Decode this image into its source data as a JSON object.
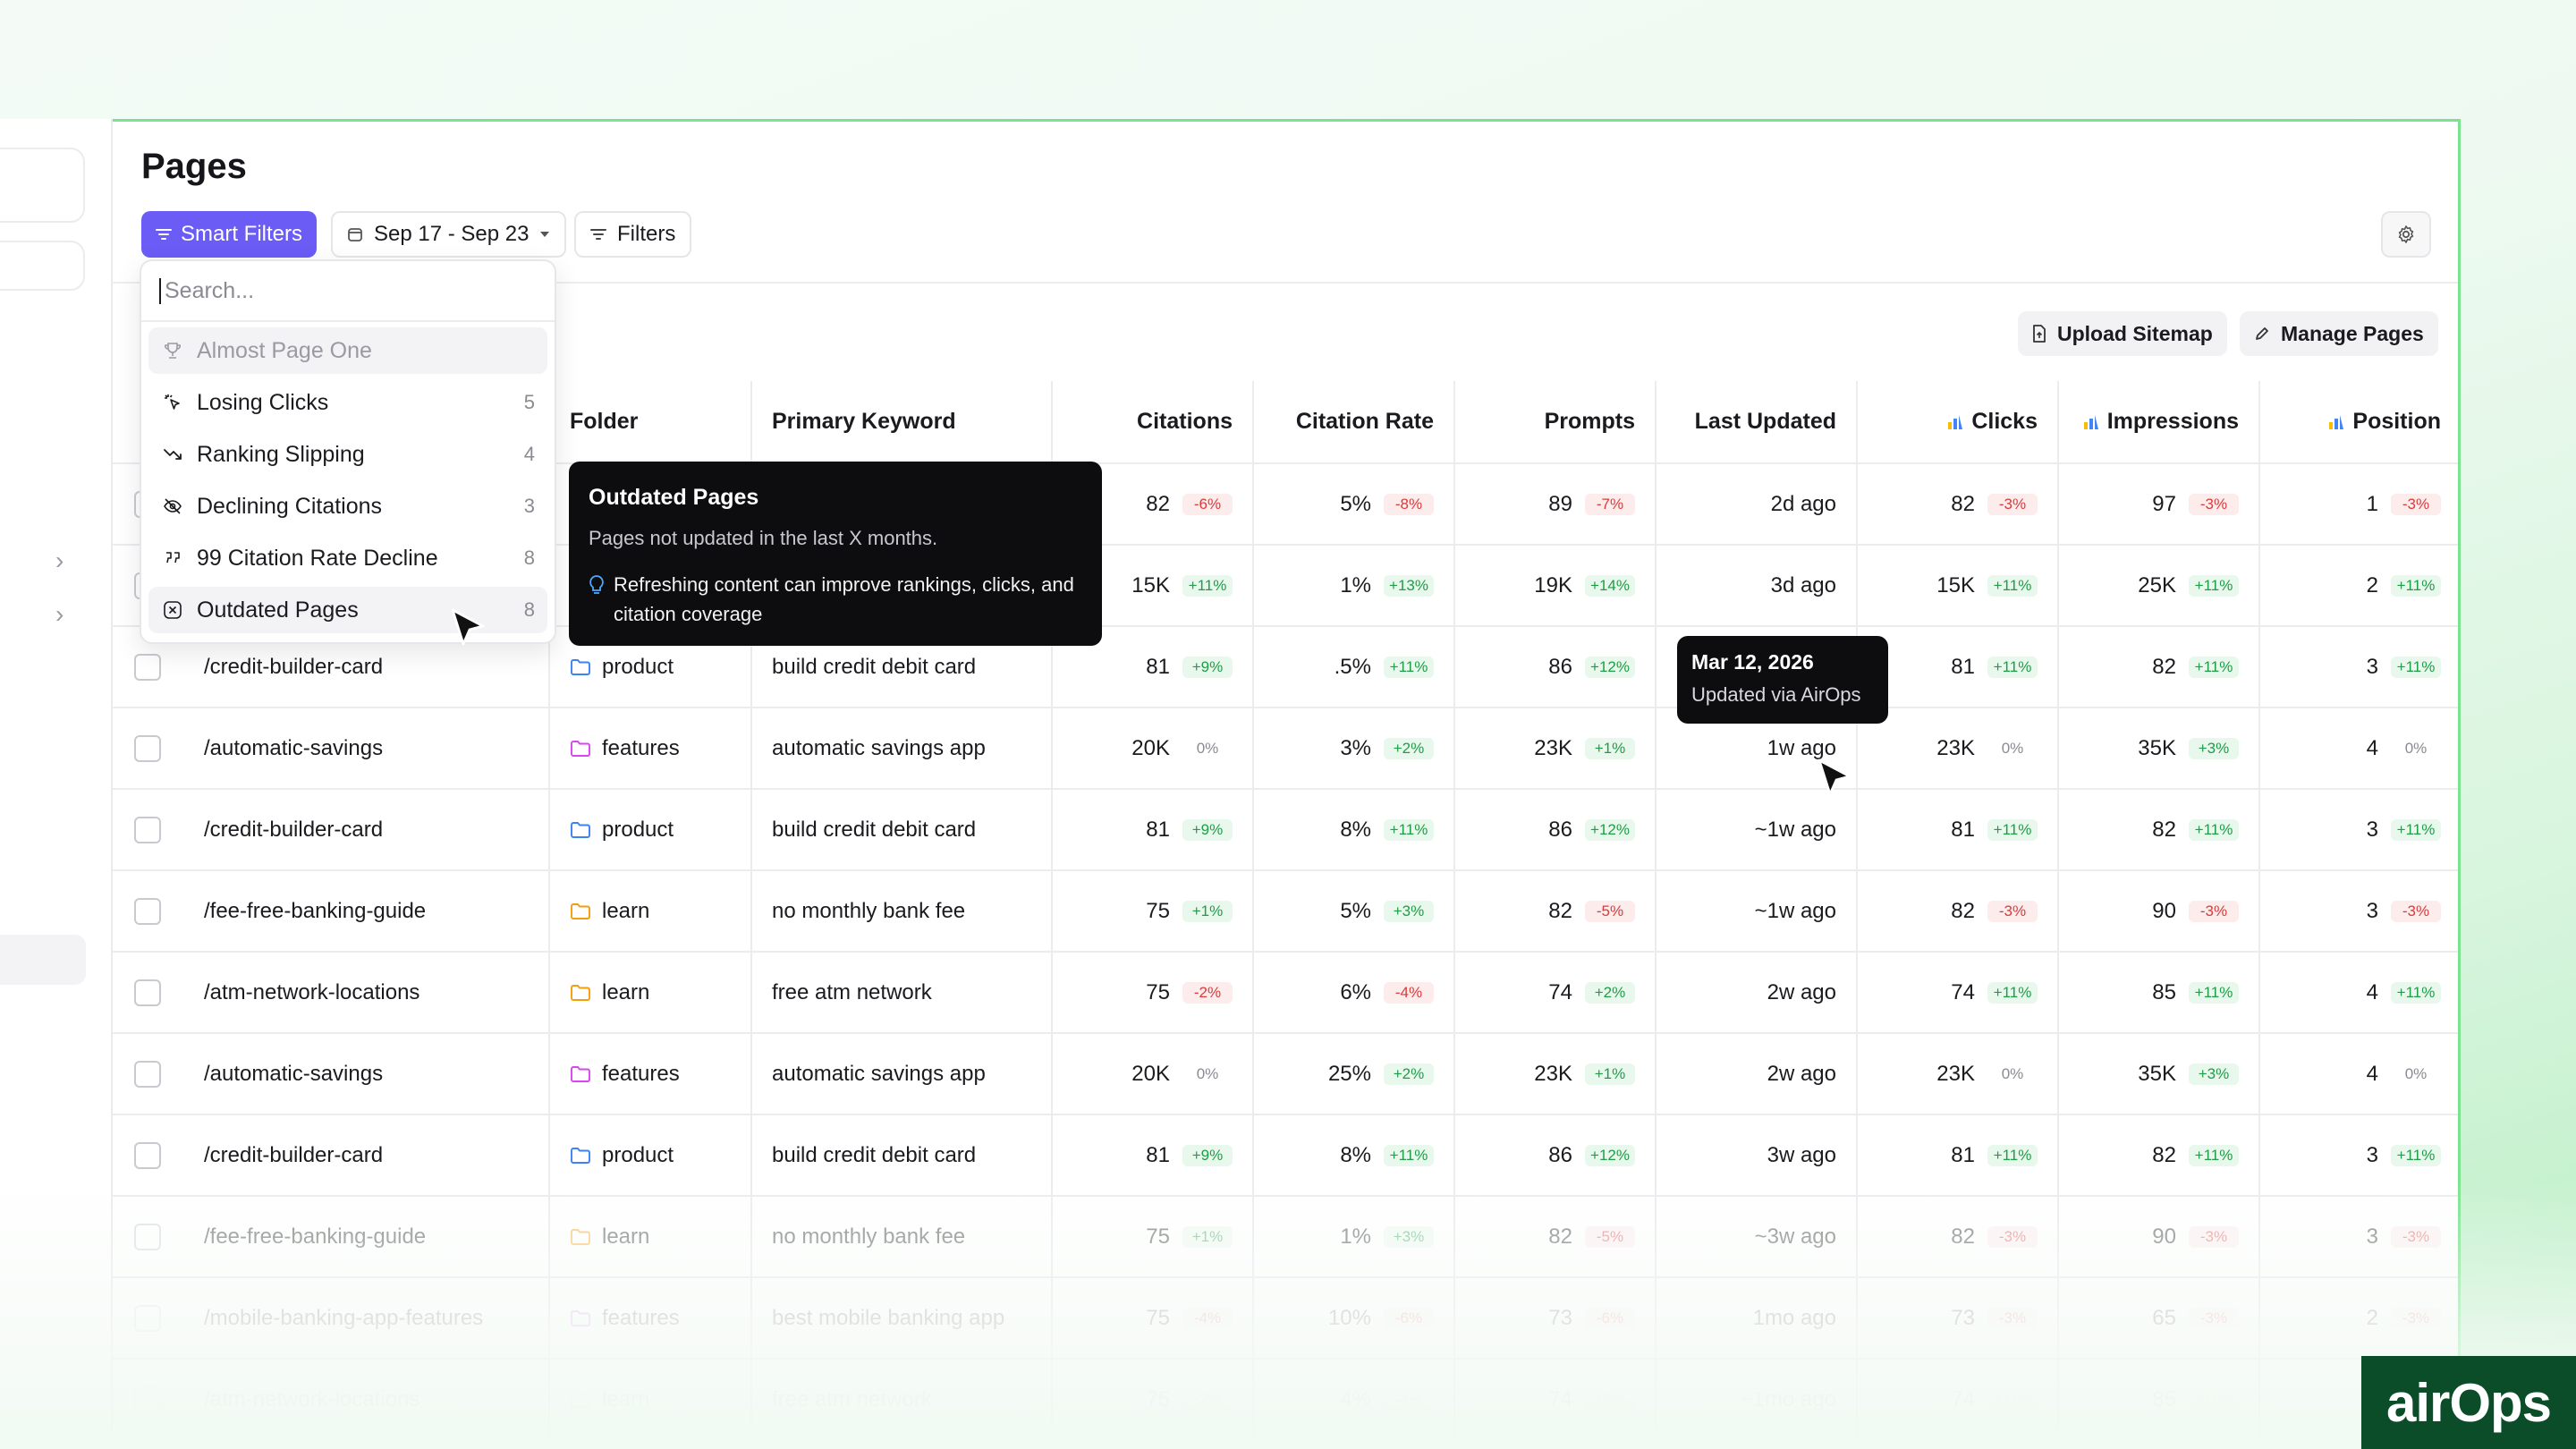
{
  "page": {
    "title": "Pages"
  },
  "toolbar": {
    "smart_filters_label": "Smart Filters",
    "date_range_label": "Sep 17 - Sep 23",
    "filters_label": "Filters",
    "upload_sitemap_label": "Upload Sitemap",
    "manage_pages_label": "Manage Pages"
  },
  "dropdown": {
    "search_placeholder": "Search...",
    "items": [
      {
        "label": "Almost Page One",
        "count": "",
        "icon": "trophy-icon",
        "state": "disabled"
      },
      {
        "label": "Losing Clicks",
        "count": "5",
        "icon": "cursor-click-icon",
        "state": ""
      },
      {
        "label": "Ranking Slipping",
        "count": "4",
        "icon": "trend-down-icon",
        "state": ""
      },
      {
        "label": "Declining Citations",
        "count": "3",
        "icon": "eye-off-icon",
        "state": ""
      },
      {
        "label": "99 Citation Rate Decline",
        "count": "8",
        "icon": "quote-icon",
        "state": ""
      },
      {
        "label": "Outdated Pages",
        "count": "8",
        "icon": "clock-x-icon",
        "state": "active"
      }
    ]
  },
  "tooltip_filter": {
    "title": "Outdated Pages",
    "description": "Pages not updated in the last X months.",
    "tip": "Refreshing content can improve rankings, clicks, and citation coverage"
  },
  "tooltip_date": {
    "date": "Mar 12, 2026",
    "subtitle": "Updated via AirOps"
  },
  "table": {
    "headers": {
      "folder": "Folder",
      "keyword": "Primary Keyword",
      "citations": "Citations",
      "citation_rate": "Citation Rate",
      "prompts": "Prompts",
      "last_updated": "Last Updated",
      "clicks": "Clicks",
      "impressions": "Impressions",
      "position": "Position"
    },
    "rows": [
      {
        "url": "",
        "folder": "",
        "folder_color": "",
        "keyword": "",
        "citations": "82",
        "citations_d": "-6%",
        "rate": "5%",
        "rate_d": "-8%",
        "prompts": "89",
        "prompts_d": "-7%",
        "updated": "2d ago",
        "clicks": "82",
        "clicks_d": "-3%",
        "impr": "97",
        "impr_d": "-3%",
        "pos": "1",
        "pos_d": "-3%",
        "opacity": 1
      },
      {
        "url": "",
        "folder": "",
        "folder_color": "",
        "keyword": "",
        "citations": "15K",
        "citations_d": "+11%",
        "rate": "1%",
        "rate_d": "+13%",
        "prompts": "19K",
        "prompts_d": "+14%",
        "updated": "3d ago",
        "clicks": "15K",
        "clicks_d": "+11%",
        "impr": "25K",
        "impr_d": "+11%",
        "pos": "2",
        "pos_d": "+11%",
        "opacity": 1
      },
      {
        "url": "/credit-builder-card",
        "folder": "product",
        "folder_color": "#3b82f6",
        "keyword": "build credit debit card",
        "citations": "81",
        "citations_d": "+9%",
        "rate": ".5%",
        "rate_d": "+11%",
        "prompts": "86",
        "prompts_d": "+12%",
        "updated": "",
        "clicks": "81",
        "clicks_d": "+11%",
        "impr": "82",
        "impr_d": "+11%",
        "pos": "3",
        "pos_d": "+11%",
        "opacity": 1
      },
      {
        "url": "/automatic-savings",
        "folder": "features",
        "folder_color": "#d946ef",
        "keyword": "automatic savings app",
        "citations": "20K",
        "citations_d": "0%",
        "rate": "3%",
        "rate_d": "+2%",
        "prompts": "23K",
        "prompts_d": "+1%",
        "updated": "1w ago",
        "clicks": "23K",
        "clicks_d": "0%",
        "impr": "35K",
        "impr_d": "+3%",
        "pos": "4",
        "pos_d": "0%",
        "opacity": 1
      },
      {
        "url": "/credit-builder-card",
        "folder": "product",
        "folder_color": "#3b82f6",
        "keyword": "build credit debit card",
        "citations": "81",
        "citations_d": "+9%",
        "rate": "8%",
        "rate_d": "+11%",
        "prompts": "86",
        "prompts_d": "+12%",
        "updated": "~1w ago",
        "clicks": "81",
        "clicks_d": "+11%",
        "impr": "82",
        "impr_d": "+11%",
        "pos": "3",
        "pos_d": "+11%",
        "opacity": 1
      },
      {
        "url": "/fee-free-banking-guide",
        "folder": "learn",
        "folder_color": "#f59e0b",
        "keyword": "no monthly bank fee",
        "citations": "75",
        "citations_d": "+1%",
        "rate": "5%",
        "rate_d": "+3%",
        "prompts": "82",
        "prompts_d": "-5%",
        "updated": "~1w ago",
        "clicks": "82",
        "clicks_d": "-3%",
        "impr": "90",
        "impr_d": "-3%",
        "pos": "3",
        "pos_d": "-3%",
        "opacity": 1
      },
      {
        "url": "/atm-network-locations",
        "folder": "learn",
        "folder_color": "#f59e0b",
        "keyword": "free atm network",
        "citations": "75",
        "citations_d": "-2%",
        "rate": "6%",
        "rate_d": "-4%",
        "prompts": "74",
        "prompts_d": "+2%",
        "updated": "2w ago",
        "clicks": "74",
        "clicks_d": "+11%",
        "impr": "85",
        "impr_d": "+11%",
        "pos": "4",
        "pos_d": "+11%",
        "opacity": 1
      },
      {
        "url": "/automatic-savings",
        "folder": "features",
        "folder_color": "#d946ef",
        "keyword": "automatic savings app",
        "citations": "20K",
        "citations_d": "0%",
        "rate": "25%",
        "rate_d": "+2%",
        "prompts": "23K",
        "prompts_d": "+1%",
        "updated": "2w ago",
        "clicks": "23K",
        "clicks_d": "0%",
        "impr": "35K",
        "impr_d": "+3%",
        "pos": "4",
        "pos_d": "0%",
        "opacity": 1
      },
      {
        "url": "/credit-builder-card",
        "folder": "product",
        "folder_color": "#3b82f6",
        "keyword": "build credit debit card",
        "citations": "81",
        "citations_d": "+9%",
        "rate": "8%",
        "rate_d": "+11%",
        "prompts": "86",
        "prompts_d": "+12%",
        "updated": "3w ago",
        "clicks": "81",
        "clicks_d": "+11%",
        "impr": "82",
        "impr_d": "+11%",
        "pos": "3",
        "pos_d": "+11%",
        "opacity": 1
      },
      {
        "url": "/fee-free-banking-guide",
        "folder": "learn",
        "folder_color": "#f59e0b",
        "keyword": "no monthly bank fee",
        "citations": "75",
        "citations_d": "+1%",
        "rate": "1%",
        "rate_d": "+3%",
        "prompts": "82",
        "prompts_d": "-5%",
        "updated": "~3w ago",
        "clicks": "82",
        "clicks_d": "-3%",
        "impr": "90",
        "impr_d": "-3%",
        "pos": "3",
        "pos_d": "-3%",
        "opacity": 0.5
      },
      {
        "url": "/mobile-banking-app-features",
        "folder": "features",
        "folder_color": "#d946ef",
        "keyword": "best mobile banking app",
        "citations": "75",
        "citations_d": "-4%",
        "rate": "10%",
        "rate_d": "-6%",
        "prompts": "73",
        "prompts_d": "-6%",
        "updated": "1mo ago",
        "clicks": "73",
        "clicks_d": "-3%",
        "impr": "65",
        "impr_d": "-3%",
        "pos": "2",
        "pos_d": "-3%",
        "opacity": 0.3
      },
      {
        "url": "/atm-network-locations",
        "folder": "learn",
        "folder_color": "#f59e0b",
        "keyword": "free atm network",
        "citations": "75",
        "citations_d": "-2%",
        "rate": "4%",
        "rate_d": "-4%",
        "prompts": "74",
        "prompts_d": "+2%",
        "updated": "~1mo ago",
        "clicks": "74",
        "clicks_d": "+11%",
        "impr": "85",
        "impr_d": "+11%",
        "pos": "4",
        "pos_d": "+11%",
        "opacity": 0.12
      }
    ]
  },
  "brand": {
    "logo_text": "airOps",
    "accent": "#6b5cf6",
    "logo_bg": "#0b4d28"
  }
}
